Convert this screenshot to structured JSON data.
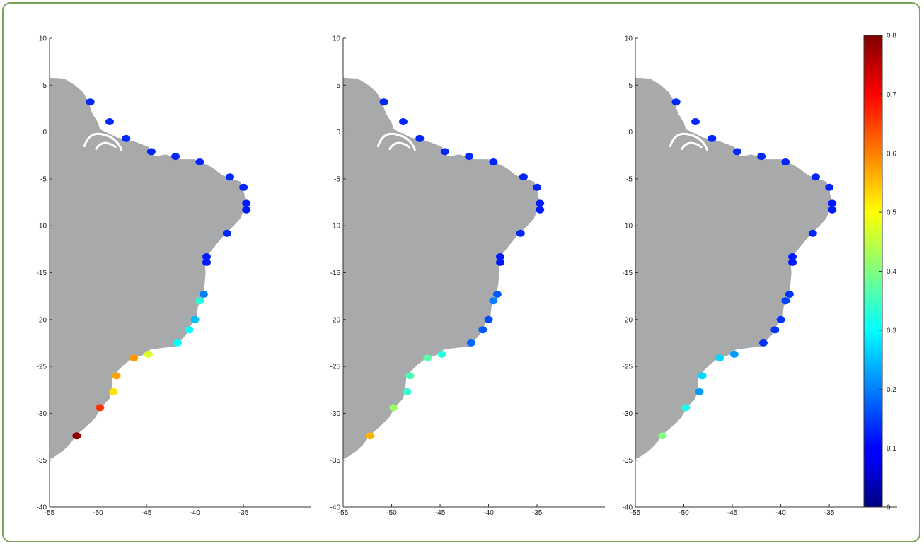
{
  "chart_data": [
    {
      "type": "scatter",
      "title": "",
      "xlabel": "",
      "ylabel": "",
      "xlim": [
        -55,
        -28
      ],
      "ylim": [
        -40,
        10
      ],
      "xticks": [
        -55,
        -50,
        -45,
        -40,
        -35
      ],
      "yticks": [
        10,
        5,
        0,
        -5,
        -10,
        -15,
        -20,
        -25,
        -30,
        -35,
        -40
      ],
      "points": [
        {
          "lon": -50.8,
          "lat": 3.2,
          "value": 0.13
        },
        {
          "lon": -48.8,
          "lat": 1.1,
          "value": 0.13
        },
        {
          "lon": -47.1,
          "lat": -0.7,
          "value": 0.13
        },
        {
          "lon": -44.5,
          "lat": -2.1,
          "value": 0.13
        },
        {
          "lon": -42.0,
          "lat": -2.6,
          "value": 0.13
        },
        {
          "lon": -39.5,
          "lat": -3.2,
          "value": 0.13
        },
        {
          "lon": -36.4,
          "lat": -4.8,
          "value": 0.13
        },
        {
          "lon": -35.0,
          "lat": -5.9,
          "value": 0.13
        },
        {
          "lon": -34.7,
          "lat": -7.6,
          "value": 0.12
        },
        {
          "lon": -34.7,
          "lat": -8.3,
          "value": 0.12
        },
        {
          "lon": -36.7,
          "lat": -10.8,
          "value": 0.13
        },
        {
          "lon": -38.8,
          "lat": -13.3,
          "value": 0.12
        },
        {
          "lon": -38.8,
          "lat": -13.9,
          "value": 0.12
        },
        {
          "lon": -39.1,
          "lat": -17.3,
          "value": 0.2
        },
        {
          "lon": -39.5,
          "lat": -18.0,
          "value": 0.33
        },
        {
          "lon": -40.0,
          "lat": -20.0,
          "value": 0.25
        },
        {
          "lon": -40.6,
          "lat": -21.1,
          "value": 0.3
        },
        {
          "lon": -41.8,
          "lat": -22.5,
          "value": 0.3
        },
        {
          "lon": -44.8,
          "lat": -23.7,
          "value": 0.47
        },
        {
          "lon": -46.3,
          "lat": -24.1,
          "value": 0.58
        },
        {
          "lon": -48.1,
          "lat": -26.0,
          "value": 0.57
        },
        {
          "lon": -48.4,
          "lat": -27.7,
          "value": 0.52
        },
        {
          "lon": -49.8,
          "lat": -29.4,
          "value": 0.66
        },
        {
          "lon": -52.2,
          "lat": -32.4,
          "value": 0.79
        }
      ]
    },
    {
      "type": "scatter",
      "title": "",
      "xlabel": "",
      "ylabel": "",
      "xlim": [
        -55,
        -28
      ],
      "ylim": [
        -40,
        10
      ],
      "xticks": [
        -55,
        -50,
        -45,
        -40,
        -35
      ],
      "yticks": [
        10,
        5,
        0,
        -5,
        -10,
        -15,
        -20,
        -25,
        -30,
        -35,
        -40
      ],
      "points": [
        {
          "lon": -50.8,
          "lat": 3.2,
          "value": 0.13
        },
        {
          "lon": -48.8,
          "lat": 1.1,
          "value": 0.13
        },
        {
          "lon": -47.1,
          "lat": -0.7,
          "value": 0.13
        },
        {
          "lon": -44.5,
          "lat": -2.1,
          "value": 0.13
        },
        {
          "lon": -42.0,
          "lat": -2.6,
          "value": 0.13
        },
        {
          "lon": -39.5,
          "lat": -3.2,
          "value": 0.13
        },
        {
          "lon": -36.4,
          "lat": -4.8,
          "value": 0.13
        },
        {
          "lon": -35.0,
          "lat": -5.9,
          "value": 0.13
        },
        {
          "lon": -34.7,
          "lat": -7.6,
          "value": 0.12
        },
        {
          "lon": -34.7,
          "lat": -8.3,
          "value": 0.12
        },
        {
          "lon": -36.7,
          "lat": -10.8,
          "value": 0.13
        },
        {
          "lon": -38.8,
          "lat": -13.3,
          "value": 0.12
        },
        {
          "lon": -38.8,
          "lat": -13.9,
          "value": 0.12
        },
        {
          "lon": -39.1,
          "lat": -17.3,
          "value": 0.17
        },
        {
          "lon": -39.5,
          "lat": -18.0,
          "value": 0.2
        },
        {
          "lon": -40.0,
          "lat": -20.0,
          "value": 0.16
        },
        {
          "lon": -40.6,
          "lat": -21.1,
          "value": 0.17
        },
        {
          "lon": -41.8,
          "lat": -22.5,
          "value": 0.18
        },
        {
          "lon": -44.8,
          "lat": -23.7,
          "value": 0.33
        },
        {
          "lon": -46.3,
          "lat": -24.1,
          "value": 0.37
        },
        {
          "lon": -48.1,
          "lat": -26.0,
          "value": 0.36
        },
        {
          "lon": -48.4,
          "lat": -27.7,
          "value": 0.34
        },
        {
          "lon": -49.8,
          "lat": -29.4,
          "value": 0.42
        },
        {
          "lon": -52.2,
          "lat": -32.4,
          "value": 0.56
        }
      ]
    },
    {
      "type": "scatter",
      "title": "",
      "xlabel": "",
      "ylabel": "",
      "xlim": [
        -55,
        -28
      ],
      "ylim": [
        -40,
        10
      ],
      "xticks": [
        -55,
        -50,
        -45,
        -40,
        -35
      ],
      "yticks": [
        10,
        5,
        0,
        -5,
        -10,
        -15,
        -20,
        -25,
        -30,
        -35,
        -40
      ],
      "points": [
        {
          "lon": -50.8,
          "lat": 3.2,
          "value": 0.13
        },
        {
          "lon": -48.8,
          "lat": 1.1,
          "value": 0.13
        },
        {
          "lon": -47.1,
          "lat": -0.7,
          "value": 0.13
        },
        {
          "lon": -44.5,
          "lat": -2.1,
          "value": 0.13
        },
        {
          "lon": -42.0,
          "lat": -2.6,
          "value": 0.13
        },
        {
          "lon": -39.5,
          "lat": -3.2,
          "value": 0.13
        },
        {
          "lon": -36.4,
          "lat": -4.8,
          "value": 0.13
        },
        {
          "lon": -35.0,
          "lat": -5.9,
          "value": 0.13
        },
        {
          "lon": -34.7,
          "lat": -7.6,
          "value": 0.12
        },
        {
          "lon": -34.7,
          "lat": -8.3,
          "value": 0.12
        },
        {
          "lon": -36.7,
          "lat": -10.8,
          "value": 0.13
        },
        {
          "lon": -38.8,
          "lat": -13.3,
          "value": 0.12
        },
        {
          "lon": -38.8,
          "lat": -13.9,
          "value": 0.12
        },
        {
          "lon": -39.1,
          "lat": -17.3,
          "value": 0.14
        },
        {
          "lon": -39.5,
          "lat": -18.0,
          "value": 0.15
        },
        {
          "lon": -40.0,
          "lat": -20.0,
          "value": 0.14
        },
        {
          "lon": -40.6,
          "lat": -21.1,
          "value": 0.14
        },
        {
          "lon": -41.8,
          "lat": -22.5,
          "value": 0.14
        },
        {
          "lon": -44.8,
          "lat": -23.7,
          "value": 0.22
        },
        {
          "lon": -46.3,
          "lat": -24.1,
          "value": 0.27
        },
        {
          "lon": -48.1,
          "lat": -26.0,
          "value": 0.27
        },
        {
          "lon": -48.4,
          "lat": -27.7,
          "value": 0.22
        },
        {
          "lon": -49.8,
          "lat": -29.4,
          "value": 0.32
        },
        {
          "lon": -52.2,
          "lat": -32.4,
          "value": 0.4
        }
      ]
    }
  ],
  "colorbar": {
    "min": 0,
    "max": 0.8,
    "ticks": [
      "0",
      "0.1",
      "0.2",
      "0.3",
      "0.4",
      "0.5",
      "0.6",
      "0.7",
      "0.8"
    ],
    "colormap": "jet"
  }
}
